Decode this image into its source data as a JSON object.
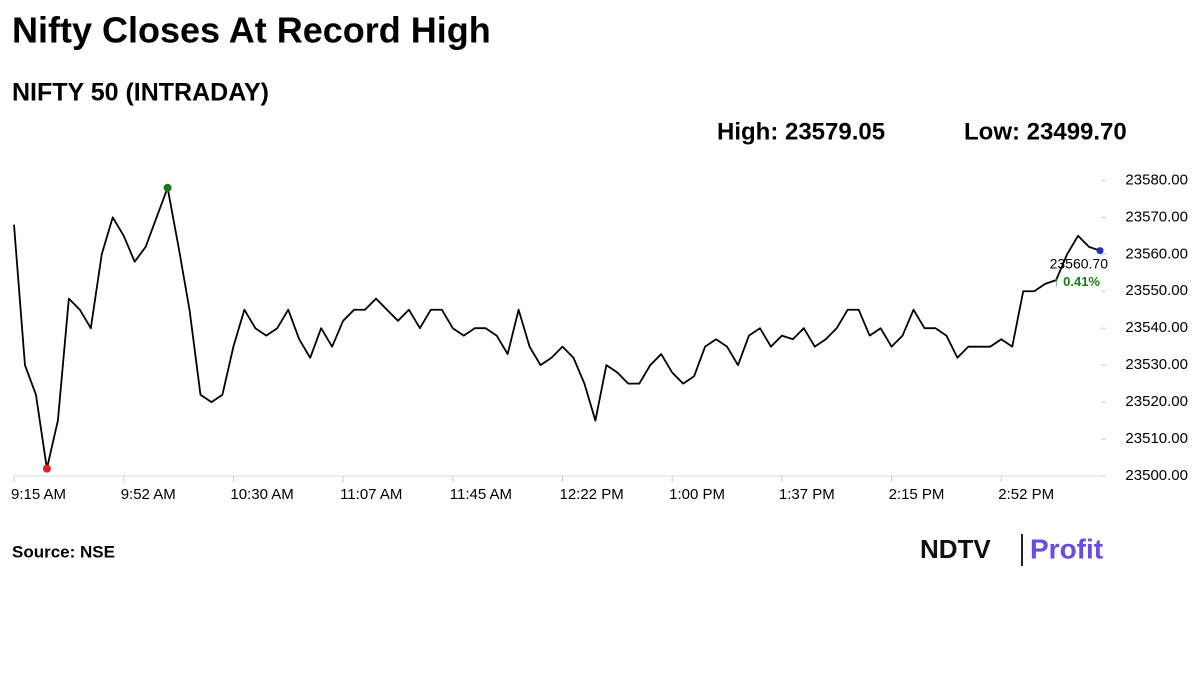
{
  "chart_data": {
    "type": "line",
    "title": "Nifty Closes At Record High",
    "subtitle": "NIFTY 50 (INTRADAY)",
    "high_label": "High: 23579.05",
    "low_label": "Low: 23499.70",
    "last_label": "23560.70",
    "change_label": "↑ 0.41%",
    "source": "Source: NSE",
    "logo": {
      "left": "NDTV",
      "right": "Profit"
    },
    "categories": [
      "9:15 AM",
      null,
      null,
      null,
      null,
      null,
      null,
      null,
      null,
      null,
      "9:52 AM",
      null,
      null,
      null,
      null,
      null,
      null,
      null,
      null,
      null,
      "10:30 AM",
      null,
      null,
      null,
      null,
      null,
      null,
      null,
      null,
      null,
      "11:07 AM",
      null,
      null,
      null,
      null,
      null,
      null,
      null,
      null,
      null,
      "11:45 AM",
      null,
      null,
      null,
      null,
      null,
      null,
      null,
      null,
      null,
      "12:22 PM",
      null,
      null,
      null,
      null,
      null,
      null,
      null,
      null,
      null,
      "1:00 PM",
      null,
      null,
      null,
      null,
      null,
      null,
      null,
      null,
      null,
      "1:37 PM",
      null,
      null,
      null,
      null,
      null,
      null,
      null,
      null,
      null,
      "2:15 PM",
      null,
      null,
      null,
      null,
      null,
      null,
      null,
      null,
      null,
      "2:52 PM",
      null,
      null,
      null,
      null,
      null,
      null,
      null,
      null,
      null
    ],
    "series": [
      {
        "name": "NIFTY 50",
        "color": "#000000",
        "values": [
          23568,
          23530,
          23522,
          23502,
          23515,
          23548,
          23545,
          23540,
          23560,
          23570,
          23565,
          23558,
          23562,
          23570,
          23578,
          23562,
          23545,
          23522,
          23520,
          23522,
          23535,
          23545,
          23540,
          23538,
          23540,
          23545,
          23537,
          23532,
          23540,
          23535,
          23542,
          23545,
          23545,
          23548,
          23545,
          23542,
          23545,
          23540,
          23545,
          23545,
          23540,
          23538,
          23540,
          23540,
          23538,
          23533,
          23545,
          23535,
          23530,
          23532,
          23535,
          23532,
          23525,
          23515,
          23530,
          23528,
          23525,
          23525,
          23530,
          23533,
          23528,
          23525,
          23527,
          23535,
          23537,
          23535,
          23530,
          23538,
          23540,
          23535,
          23538,
          23537,
          23540,
          23535,
          23537,
          23540,
          23545,
          23545,
          23538,
          23540,
          23535,
          23538,
          23545,
          23540,
          23540,
          23538,
          23532,
          23535,
          23535,
          23535,
          23537,
          23535,
          23550,
          23550,
          23552,
          23553,
          23560,
          23565,
          23562,
          23561
        ]
      }
    ],
    "ylim": [
      23500,
      23582
    ],
    "yticks": [
      {
        "value": 23500,
        "label": "23500.00"
      },
      {
        "value": 23510,
        "label": "23510.00"
      },
      {
        "value": 23520,
        "label": "23520.00"
      },
      {
        "value": 23530,
        "label": "23530.00"
      },
      {
        "value": 23540,
        "label": "23540.00"
      },
      {
        "value": 23550,
        "label": "23550.00"
      },
      {
        "value": 23560,
        "label": "23560.00"
      },
      {
        "value": 23570,
        "label": "23570.00"
      },
      {
        "value": 23580,
        "label": "23580.00"
      }
    ],
    "colors": {
      "high": "#1a7a1a",
      "low": "#e02020",
      "last": "#2030c0",
      "change": "#1a7a1a"
    }
  }
}
